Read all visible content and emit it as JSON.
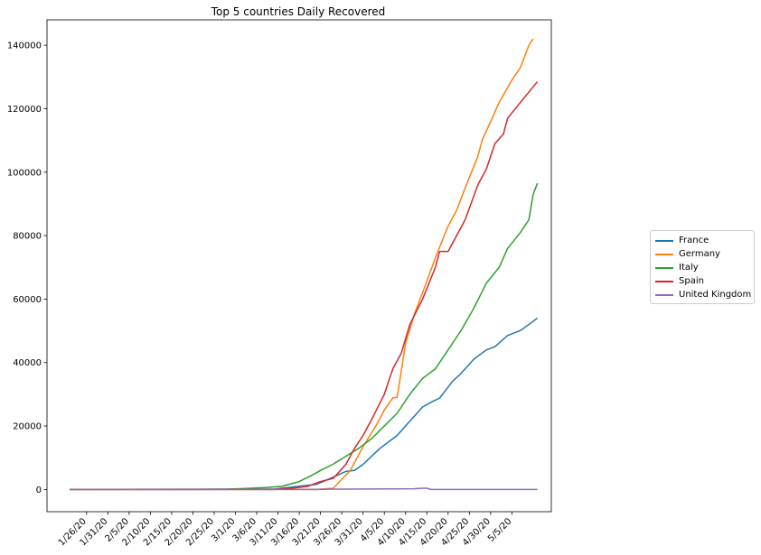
{
  "chart_data": {
    "type": "line",
    "title": "Top 5 countries Daily Recovered",
    "xlabel": "",
    "ylabel": "",
    "x_ticks": [
      "1/26/20",
      "1/31/20",
      "2/5/20",
      "2/10/20",
      "2/15/20",
      "2/20/20",
      "2/25/20",
      "3/1/20",
      "3/6/20",
      "3/11/20",
      "3/16/20",
      "3/21/20",
      "3/26/20",
      "3/31/20",
      "4/5/20",
      "4/10/20",
      "4/15/20",
      "4/20/20",
      "4/25/20",
      "4/30/20",
      "5/5/20"
    ],
    "x_start": "1/22/20",
    "x_end": "5/8/20",
    "ylim": [
      -7000,
      148000
    ],
    "y_ticks": [
      0,
      20000,
      40000,
      60000,
      80000,
      100000,
      120000,
      140000
    ],
    "grid": false,
    "legend_position": "center-right outside",
    "series": [
      {
        "name": "France",
        "color": "#1f77b4",
        "points": [
          [
            "1/22/20",
            0
          ],
          [
            "2/28/20",
            100
          ],
          [
            "3/10/20",
            100
          ],
          [
            "3/20/20",
            1600
          ],
          [
            "3/24/20",
            3900
          ],
          [
            "3/27/20",
            5700
          ],
          [
            "3/29/20",
            6000
          ],
          [
            "3/31/20",
            7900
          ],
          [
            "4/4/20",
            13000
          ],
          [
            "4/8/20",
            17000
          ],
          [
            "4/10/20",
            20000
          ],
          [
            "4/14/20",
            26000
          ],
          [
            "4/16/20",
            27500
          ],
          [
            "4/18/20",
            28800
          ],
          [
            "4/21/20",
            34000
          ],
          [
            "4/23/20",
            36500
          ],
          [
            "4/26/20",
            41000
          ],
          [
            "4/29/20",
            44000
          ],
          [
            "5/1/20",
            45000
          ],
          [
            "5/4/20",
            48500
          ],
          [
            "5/7/20",
            50100
          ],
          [
            "5/9/20",
            52000
          ],
          [
            "5/11/20",
            54000
          ]
        ]
      },
      {
        "name": "Germany",
        "color": "#ff7f0e",
        "points": [
          [
            "1/22/20",
            0
          ],
          [
            "3/10/20",
            0
          ],
          [
            "3/20/20",
            0
          ],
          [
            "3/24/20",
            400
          ],
          [
            "3/26/20",
            3200
          ],
          [
            "3/28/20",
            6000
          ],
          [
            "3/31/20",
            13500
          ],
          [
            "4/3/20",
            20000
          ],
          [
            "4/5/20",
            25000
          ],
          [
            "4/7/20",
            28900
          ],
          [
            "4/8/20",
            29000
          ],
          [
            "4/10/20",
            46000
          ],
          [
            "4/12/20",
            55000
          ],
          [
            "4/14/20",
            62000
          ],
          [
            "4/17/20",
            73000
          ],
          [
            "4/20/20",
            83000
          ],
          [
            "4/22/20",
            88000
          ],
          [
            "4/24/20",
            95000
          ],
          [
            "4/27/20",
            105000
          ],
          [
            "4/28/20",
            110000
          ],
          [
            "4/30/20",
            116000
          ],
          [
            "5/2/20",
            122000
          ],
          [
            "5/5/20",
            129000
          ],
          [
            "5/7/20",
            133000
          ],
          [
            "5/9/20",
            140000
          ],
          [
            "5/10/20",
            142000
          ]
        ]
      },
      {
        "name": "Italy",
        "color": "#2ca02c",
        "points": [
          [
            "1/22/20",
            0
          ],
          [
            "2/20/20",
            0
          ],
          [
            "2/28/20",
            100
          ],
          [
            "3/3/20",
            300
          ],
          [
            "3/8/20",
            600
          ],
          [
            "3/12/20",
            1000
          ],
          [
            "3/16/20",
            2500
          ],
          [
            "3/19/20",
            4500
          ],
          [
            "3/21/20",
            6000
          ],
          [
            "3/24/20",
            8000
          ],
          [
            "3/27/20",
            10500
          ],
          [
            "3/30/20",
            13000
          ],
          [
            "4/2/20",
            16000
          ],
          [
            "4/5/20",
            20000
          ],
          [
            "4/8/20",
            24000
          ],
          [
            "4/11/20",
            30000
          ],
          [
            "4/14/20",
            35000
          ],
          [
            "4/17/20",
            38000
          ],
          [
            "4/20/20",
            44000
          ],
          [
            "4/23/20",
            50000
          ],
          [
            "4/26/20",
            57000
          ],
          [
            "4/29/20",
            65000
          ],
          [
            "5/2/20",
            70000
          ],
          [
            "5/4/20",
            76000
          ],
          [
            "5/7/20",
            81000
          ],
          [
            "5/9/20",
            85000
          ],
          [
            "5/10/20",
            93000
          ],
          [
            "5/11/20",
            96500
          ]
        ]
      },
      {
        "name": "Spain",
        "color": "#d62728",
        "points": [
          [
            "1/22/20",
            0
          ],
          [
            "3/10/20",
            0
          ],
          [
            "3/15/20",
            500
          ],
          [
            "3/18/20",
            1000
          ],
          [
            "3/21/20",
            2500
          ],
          [
            "3/24/20",
            3500
          ],
          [
            "3/27/20",
            8000
          ],
          [
            "3/29/20",
            13000
          ],
          [
            "3/31/20",
            17000
          ],
          [
            "4/2/20",
            22000
          ],
          [
            "4/5/20",
            30000
          ],
          [
            "4/7/20",
            38000
          ],
          [
            "4/9/20",
            43000
          ],
          [
            "4/11/20",
            52000
          ],
          [
            "4/14/20",
            60000
          ],
          [
            "4/17/20",
            70000
          ],
          [
            "4/18/20",
            75000
          ],
          [
            "4/20/20",
            75000
          ],
          [
            "4/22/20",
            80000
          ],
          [
            "4/24/20",
            85000
          ],
          [
            "4/27/20",
            96000
          ],
          [
            "4/29/20",
            101000
          ],
          [
            "5/1/20",
            109000
          ],
          [
            "5/3/20",
            112000
          ],
          [
            "5/4/20",
            117000
          ],
          [
            "5/7/20",
            122000
          ],
          [
            "5/11/20",
            128500
          ]
        ]
      },
      {
        "name": "United Kingdom",
        "color": "#9467bd",
        "points": [
          [
            "1/22/20",
            0
          ],
          [
            "3/20/20",
            0
          ],
          [
            "3/24/20",
            100
          ],
          [
            "4/12/20",
            200
          ],
          [
            "4/14/20",
            400
          ],
          [
            "4/15/20",
            400
          ],
          [
            "4/16/20",
            0
          ],
          [
            "5/11/20",
            0
          ]
        ]
      }
    ]
  }
}
